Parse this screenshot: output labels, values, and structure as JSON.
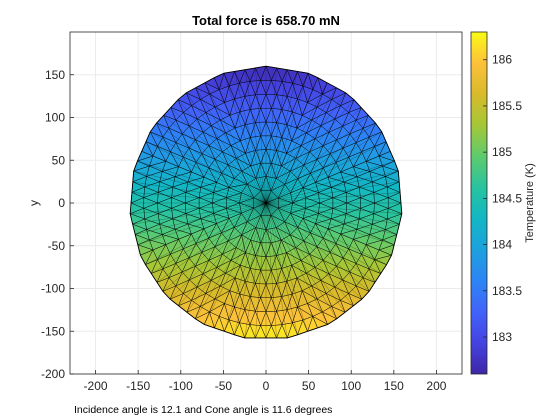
{
  "chart_data": {
    "type": "heatmap",
    "subtype": "triangulated-disk-surface",
    "title": "Total force is 658.70 mN",
    "xlabel": "",
    "ylabel": "y",
    "xlim": [
      -230,
      230
    ],
    "ylim": [
      -200,
      200
    ],
    "xticks": [
      -200,
      -150,
      -100,
      -50,
      0,
      50,
      100,
      150,
      200
    ],
    "yticks": [
      -200,
      -150,
      -100,
      -50,
      0,
      50,
      100,
      150
    ],
    "grid": true,
    "disk": {
      "center": [
        0,
        0
      ],
      "radius": 160,
      "rings": 10,
      "boundary_sides": 19
    },
    "colorbar": {
      "label": "Temperature (K)",
      "range": [
        182.6,
        186.3
      ],
      "ticks": [
        183,
        183.5,
        184,
        184.5,
        185,
        185.5,
        186
      ],
      "colormap": "parula"
    },
    "temperature_field": {
      "at_y_160": 182.65,
      "at_center": 184.5,
      "at_y_minus_160": 186.25
    },
    "annotation": "Incidence angle is 12.1 and Cone angle is 11.6 degrees"
  },
  "colors": {
    "axes_color": "#262626",
    "grid_color": "#ebebeb",
    "mesh_edge": "#000000",
    "parula_stops": [
      "#3e26a8",
      "#4543e0",
      "#4163f9",
      "#2c85f5",
      "#1da1de",
      "#12b7c4",
      "#28c39f",
      "#5ecb6e",
      "#a4c737",
      "#d8ba2a",
      "#fcc13a",
      "#f9fb15"
    ]
  }
}
